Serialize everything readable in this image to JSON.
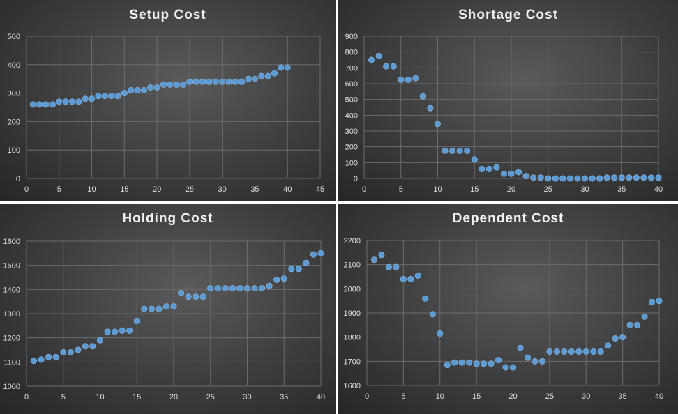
{
  "chart_data": [
    {
      "type": "scatter",
      "title": "Setup  Cost",
      "xlim": [
        0,
        45
      ],
      "xticks": [
        0,
        5,
        10,
        15,
        20,
        25,
        30,
        35,
        40,
        45
      ],
      "ylim": [
        0,
        500
      ],
      "yticks": [
        0,
        100,
        200,
        300,
        400,
        500
      ],
      "grid": true,
      "series": [
        {
          "color": "#5b9bd5",
          "x": [
            1,
            2,
            3,
            4,
            5,
            6,
            7,
            8,
            9,
            10,
            11,
            12,
            13,
            14,
            15,
            16,
            17,
            18,
            19,
            20,
            21,
            22,
            23,
            24,
            25,
            26,
            27,
            28,
            29,
            30,
            31,
            32,
            33,
            34,
            35,
            36,
            37,
            38,
            39,
            40
          ],
          "y": [
            260,
            260,
            260,
            260,
            270,
            270,
            270,
            270,
            280,
            280,
            290,
            290,
            290,
            290,
            300,
            310,
            310,
            310,
            320,
            320,
            330,
            330,
            330,
            330,
            340,
            340,
            340,
            340,
            340,
            340,
            340,
            340,
            340,
            350,
            350,
            360,
            360,
            370,
            390,
            390
          ]
        }
      ]
    },
    {
      "type": "scatter",
      "title": "Shortage  Cost",
      "xlim": [
        0,
        40
      ],
      "xticks": [
        0,
        5,
        10,
        15,
        20,
        25,
        30,
        35,
        40
      ],
      "ylim": [
        0,
        900
      ],
      "yticks": [
        0,
        100,
        200,
        300,
        400,
        500,
        600,
        700,
        800,
        900
      ],
      "grid": true,
      "series": [
        {
          "color": "#5b9bd5",
          "x": [
            1,
            2,
            3,
            4,
            5,
            6,
            7,
            8,
            9,
            10,
            11,
            12,
            13,
            14,
            15,
            16,
            17,
            18,
            19,
            20,
            21,
            22,
            23,
            24,
            25,
            26,
            27,
            28,
            29,
            30,
            31,
            32,
            33,
            34,
            35,
            36,
            37,
            38,
            39,
            40
          ],
          "y": [
            750,
            775,
            710,
            710,
            625,
            625,
            635,
            520,
            445,
            345,
            175,
            175,
            175,
            175,
            120,
            60,
            60,
            70,
            30,
            30,
            40,
            15,
            5,
            5,
            0,
            0,
            0,
            0,
            0,
            0,
            0,
            0,
            5,
            5,
            5,
            5,
            5,
            5,
            5,
            5
          ]
        }
      ]
    },
    {
      "type": "scatter",
      "title": "Holding  Cost",
      "xlim": [
        0,
        40
      ],
      "xticks": [
        0,
        5,
        10,
        15,
        20,
        25,
        30,
        35,
        40
      ],
      "ylim": [
        1000,
        1600
      ],
      "yticks": [
        1000,
        1100,
        1200,
        1300,
        1400,
        1500,
        1600
      ],
      "grid": true,
      "series": [
        {
          "color": "#5b9bd5",
          "x": [
            1,
            2,
            3,
            4,
            5,
            6,
            7,
            8,
            9,
            10,
            11,
            12,
            13,
            14,
            15,
            16,
            17,
            18,
            19,
            20,
            21,
            22,
            23,
            24,
            25,
            26,
            27,
            28,
            29,
            30,
            31,
            32,
            33,
            34,
            35,
            36,
            37,
            38,
            39,
            40
          ],
          "y": [
            1105,
            1110,
            1120,
            1120,
            1140,
            1140,
            1150,
            1165,
            1165,
            1190,
            1225,
            1225,
            1230,
            1230,
            1270,
            1320,
            1320,
            1320,
            1330,
            1330,
            1385,
            1370,
            1370,
            1370,
            1405,
            1405,
            1405,
            1405,
            1405,
            1405,
            1405,
            1405,
            1415,
            1440,
            1445,
            1485,
            1485,
            1510,
            1545,
            1550
          ]
        }
      ]
    },
    {
      "type": "scatter",
      "title": "Dependent  Cost",
      "xlim": [
        0,
        40
      ],
      "xticks": [
        0,
        5,
        10,
        15,
        20,
        25,
        30,
        35,
        40
      ],
      "ylim": [
        1600,
        2200
      ],
      "yticks": [
        1600,
        1700,
        1800,
        1900,
        2000,
        2100,
        2200
      ],
      "grid": true,
      "series": [
        {
          "color": "#5b9bd5",
          "x": [
            1,
            2,
            3,
            4,
            5,
            6,
            7,
            8,
            9,
            10,
            11,
            12,
            13,
            14,
            15,
            16,
            17,
            18,
            19,
            20,
            21,
            22,
            23,
            24,
            25,
            26,
            27,
            28,
            29,
            30,
            31,
            32,
            33,
            34,
            35,
            36,
            37,
            38,
            39,
            40
          ],
          "y": [
            2120,
            2140,
            2090,
            2090,
            2040,
            2040,
            2055,
            1960,
            1895,
            1815,
            1685,
            1695,
            1695,
            1695,
            1690,
            1690,
            1690,
            1705,
            1675,
            1675,
            1755,
            1715,
            1700,
            1700,
            1740,
            1740,
            1740,
            1740,
            1740,
            1740,
            1740,
            1740,
            1765,
            1795,
            1800,
            1850,
            1850,
            1885,
            1945,
            1950
          ]
        }
      ]
    }
  ]
}
